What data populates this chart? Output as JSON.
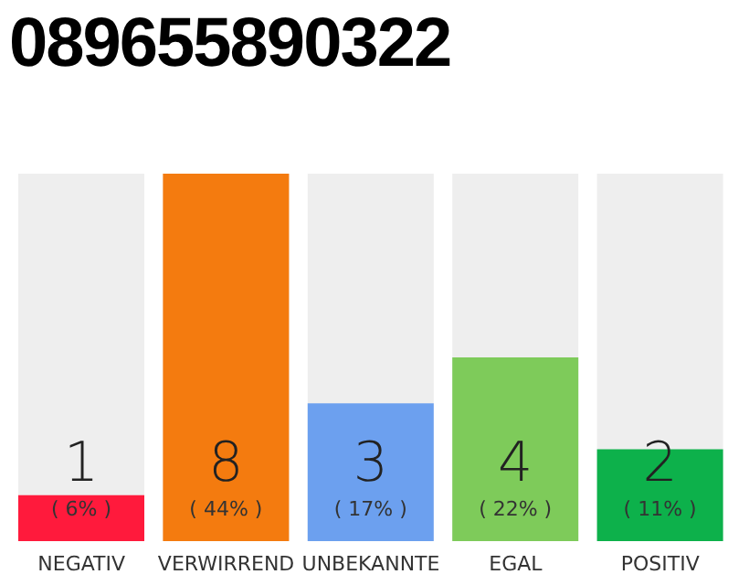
{
  "chart_data": {
    "type": "bar",
    "title": "089655890322",
    "categories": [
      "NEGATIV",
      "VERWIRREND",
      "UNBEKANNTE",
      "EGAL",
      "POSITIV"
    ],
    "values": [
      1,
      8,
      3,
      4,
      2
    ],
    "colors": [
      "#ff1a3c",
      "#f47b0f",
      "#6ca0ef",
      "#7ecb5a",
      "#0db14b"
    ],
    "data_labels": true,
    "annotations": [
      "( 6% )",
      "( 44% )",
      "( 17% )",
      "( 22% )",
      "( 11% )"
    ],
    "tick_labels": "x"
  }
}
